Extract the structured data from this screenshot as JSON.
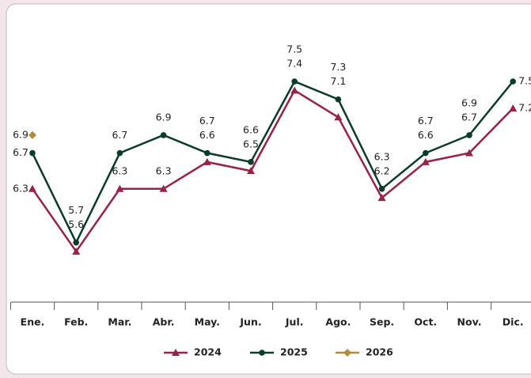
{
  "chart_data": {
    "type": "line",
    "categories": [
      "Ene.",
      "Feb.",
      "Mar.",
      "Abr.",
      "May.",
      "Jun.",
      "Jul.",
      "Ago.",
      "Sep.",
      "Oct.",
      "Nov.",
      "Dic."
    ],
    "series": [
      {
        "name": "2024",
        "color": "#9b2247",
        "marker": "triangle",
        "values": [
          6.3,
          5.6,
          6.3,
          6.3,
          6.6,
          6.5,
          7.4,
          7.1,
          6.2,
          6.6,
          6.7,
          7.2
        ]
      },
      {
        "name": "2025",
        "color": "#0b3b2c",
        "marker": "circle",
        "values": [
          6.7,
          5.7,
          6.7,
          6.9,
          6.7,
          6.6,
          7.5,
          7.3,
          6.3,
          6.7,
          6.9,
          7.5
        ]
      },
      {
        "name": "2026",
        "color": "#b08a3e",
        "marker": "diamond",
        "values": [
          6.9,
          null,
          null,
          null,
          null,
          null,
          null,
          null,
          null,
          null,
          null,
          null
        ]
      }
    ],
    "data_labels": true
  }
}
